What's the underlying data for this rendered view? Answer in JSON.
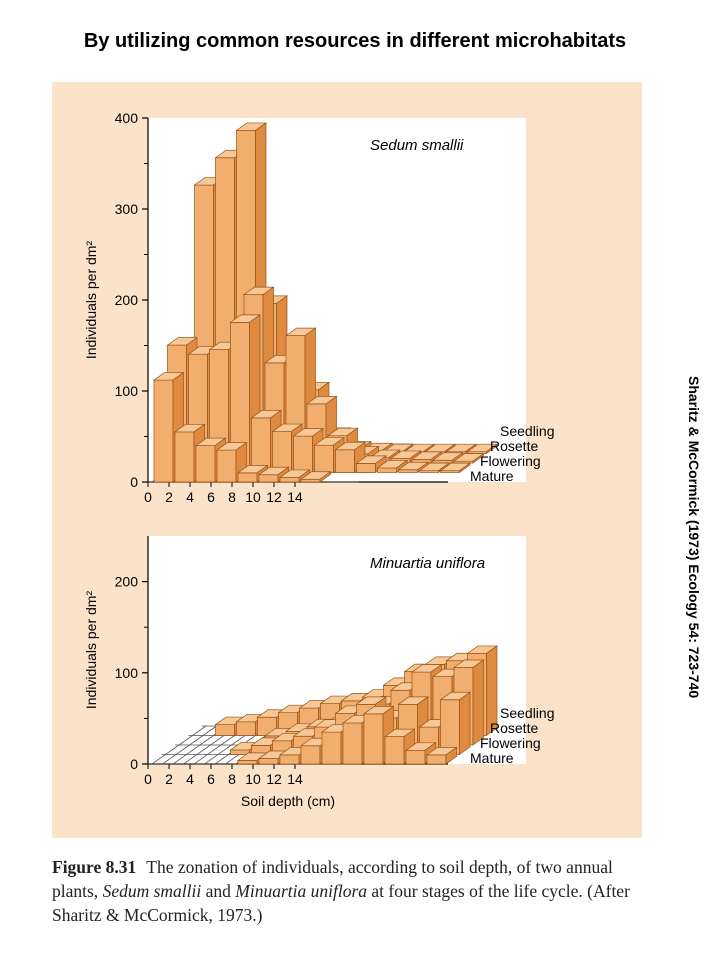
{
  "slide_title": "By utilizing common resources in different microhabitats",
  "side_citation": "Sharitz & McCormick (1973) Ecology 54: 723-740",
  "caption": {
    "figure_label": "Figure 8.31",
    "text_1": "The zonation of individuals, according to soil depth, of two annual plants, ",
    "species_1": "Sedum smallii",
    "text_2": " and ",
    "species_2": "Minuartia uniflora",
    "text_3": " at four stages of the life cycle. (After Sharitz & McCormick, 1973.)"
  },
  "colors": {
    "bar_front": "#f2ae6e",
    "bar_top": "#f7c897",
    "bar_side": "#de8a40",
    "bar_edge": "#9a5418",
    "panel_bg": "#fbe3c9",
    "plot_bg": "#ffffff"
  },
  "chart_data": [
    {
      "type": "bar3d",
      "title": "Sedum smallii",
      "xlabel": "",
      "ylabel": "Individuals per dm²",
      "ylim": [
        0,
        400
      ],
      "yticks": [
        0,
        100,
        200,
        300,
        400
      ],
      "xticks": [
        0,
        2,
        4,
        6,
        8,
        10,
        12,
        14
      ],
      "categories": [
        1,
        2,
        3,
        4,
        5,
        6,
        7,
        8,
        9,
        10,
        11,
        12,
        13,
        14
      ],
      "series": [
        {
          "name": "Seedling",
          "values": [
            295,
            325,
            355,
            165,
            90,
            70,
            20,
            5,
            3,
            2,
            2,
            2,
            2,
            2
          ]
        },
        {
          "name": "Rosette",
          "values": [
            65,
            80,
            100,
            185,
            110,
            140,
            65,
            30,
            10,
            6,
            5,
            4,
            3,
            2
          ]
        },
        {
          "name": "Flowering",
          "values": [
            140,
            130,
            135,
            165,
            60,
            45,
            40,
            30,
            25,
            10,
            5,
            3,
            2,
            2
          ]
        },
        {
          "name": "Mature",
          "values": [
            112,
            55,
            40,
            35,
            10,
            8,
            5,
            3,
            0,
            0,
            0,
            0,
            0,
            0
          ]
        }
      ]
    },
    {
      "type": "bar3d",
      "title": "Minuartia uniflora",
      "xlabel": "Soil depth (cm)",
      "ylabel": "Individuals per dm²",
      "ylim": [
        0,
        250
      ],
      "yticks": [
        0,
        100,
        200
      ],
      "xticks": [
        0,
        2,
        4,
        6,
        8,
        10,
        12,
        14
      ],
      "categories": [
        1,
        2,
        3,
        4,
        5,
        6,
        7,
        8,
        9,
        10,
        11,
        12,
        13,
        14
      ],
      "series": [
        {
          "name": "Seedling",
          "values": [
            0,
            12,
            15,
            20,
            25,
            30,
            35,
            38,
            42,
            55,
            70,
            78,
            82,
            90
          ]
        },
        {
          "name": "Rosette",
          "values": [
            0,
            0,
            0,
            0,
            10,
            15,
            20,
            25,
            35,
            45,
            60,
            80,
            75,
            85
          ]
        },
        {
          "name": "Flowering",
          "values": [
            0,
            0,
            0,
            5,
            10,
            15,
            20,
            30,
            45,
            55,
            40,
            55,
            30,
            60
          ]
        },
        {
          "name": "Mature",
          "values": [
            0,
            0,
            0,
            0,
            4,
            6,
            10,
            20,
            35,
            45,
            55,
            30,
            15,
            10
          ]
        }
      ]
    }
  ]
}
